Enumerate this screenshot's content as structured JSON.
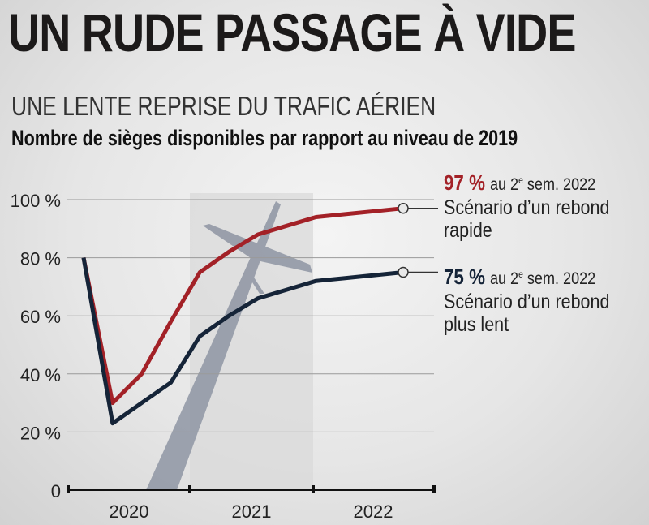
{
  "title": "UN RUDE PASSAGE À VIDE",
  "subtitle": "UNE LENTE REPRISE DU TRAFIC AÉRIEN",
  "subsubtitle": "Nombre de sièges disponibles par rapport au niveau de 2019",
  "annotations": [
    {
      "pct": "97 %",
      "sem_pre": "au 2",
      "sem_sup": "e",
      "sem_post": " sem. 2022",
      "line1": "Scénario d’un rebond",
      "line2": "rapide",
      "color": "#a32127"
    },
    {
      "pct": "75 %",
      "sem_pre": "au 2",
      "sem_sup": "e",
      "sem_post": " sem. 2022",
      "line1": "Scénario d’un rebond",
      "line2": "plus lent",
      "color": "#152438"
    }
  ],
  "colors": {
    "rapid": "#a32127",
    "slow": "#152438",
    "grid": "#9a9a9a",
    "plane": "#8e95a3"
  },
  "chart_data": {
    "type": "line",
    "x": [
      0,
      1,
      2,
      3,
      4,
      5,
      6,
      7,
      8,
      9,
      10,
      11
    ],
    "x_ticks": [
      "2020",
      "2021",
      "2022"
    ],
    "y_ticks": [
      "0",
      "20 %",
      "40 %",
      "60 %",
      "80 %",
      "100 %"
    ],
    "ylim": [
      0,
      100
    ],
    "series": [
      {
        "key": "rapid",
        "values": [
          80,
          30,
          40,
          58,
          75,
          82,
          88,
          91,
          94,
          95,
          96,
          97
        ]
      },
      {
        "key": "slow",
        "values": [
          80,
          23,
          30,
          37,
          53,
          60,
          66,
          69,
          72,
          73,
          74,
          75
        ]
      }
    ]
  }
}
